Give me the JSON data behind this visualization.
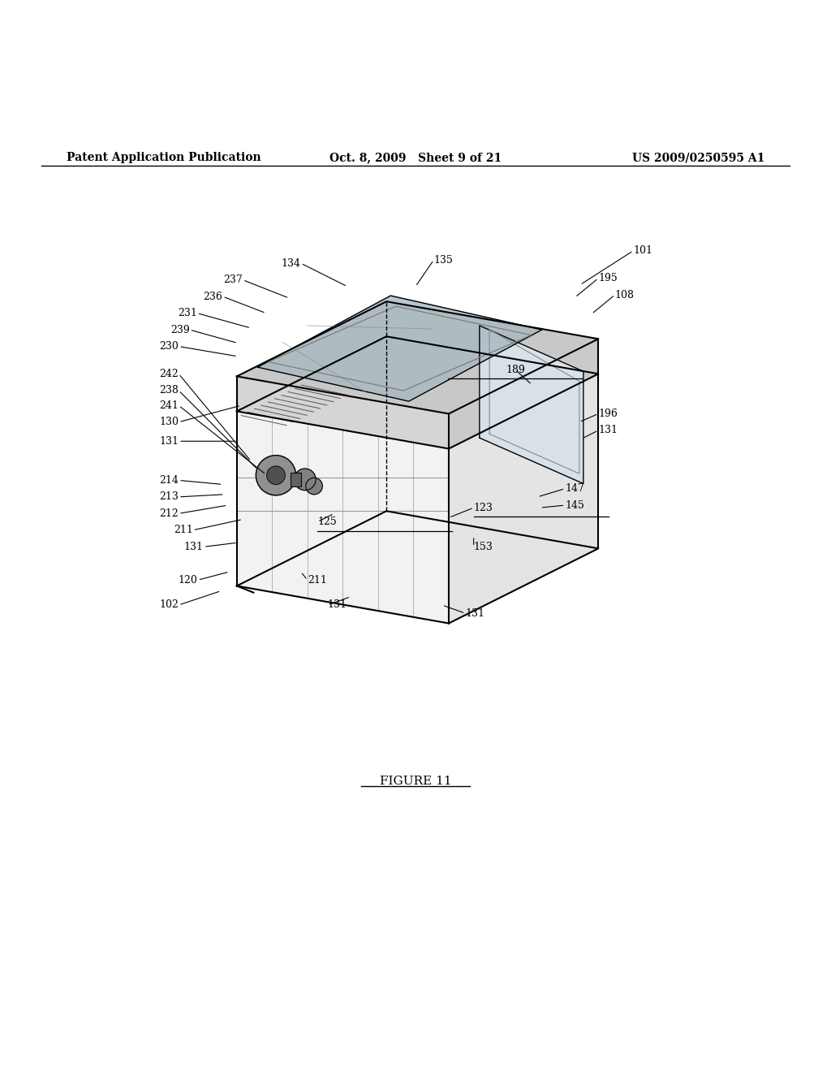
{
  "header_left": "Patent Application Publication",
  "header_mid": "Oct. 8, 2009   Sheet 9 of 21",
  "header_right": "US 2009/0250595 A1",
  "figure_label": "FIGURE 11",
  "background_color": "#ffffff",
  "line_color": "#000000",
  "label_fontsize": 9,
  "header_fontsize": 10,
  "figure_label_fontsize": 11
}
